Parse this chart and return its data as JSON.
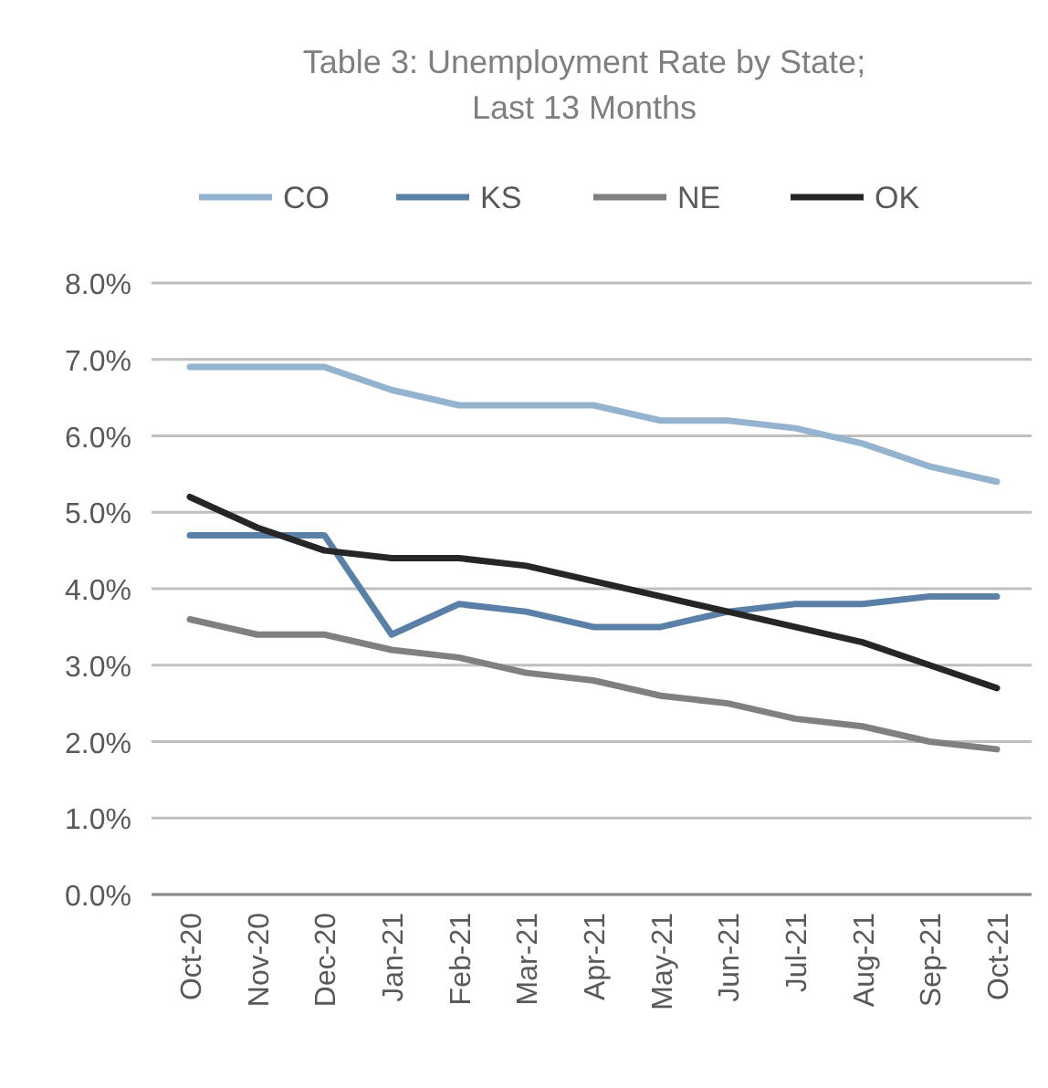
{
  "chart_data": {
    "type": "line",
    "title": "Table 3: Unemployment Rate by State; Last 13 Months",
    "categories": [
      "Oct-20",
      "Nov-20",
      "Dec-20",
      "Jan-21",
      "Feb-21",
      "Mar-21",
      "Apr-21",
      "May-21",
      "Jun-21",
      "Jul-21",
      "Aug-21",
      "Sep-21",
      "Oct-21"
    ],
    "series": [
      {
        "name": "CO",
        "color": "#93b3cf",
        "values": [
          6.9,
          6.9,
          6.9,
          6.6,
          6.4,
          6.4,
          6.4,
          6.2,
          6.2,
          6.1,
          5.9,
          5.6,
          5.4
        ]
      },
      {
        "name": "KS",
        "color": "#5b80a8",
        "values": [
          4.7,
          4.7,
          4.7,
          3.4,
          3.8,
          3.7,
          3.5,
          3.5,
          3.7,
          3.8,
          3.8,
          3.9,
          3.9
        ]
      },
      {
        "name": "NE",
        "color": "#808080",
        "values": [
          3.6,
          3.4,
          3.4,
          3.2,
          3.1,
          2.9,
          2.8,
          2.6,
          2.5,
          2.3,
          2.2,
          2.0,
          1.9
        ]
      },
      {
        "name": "OK",
        "color": "#262626",
        "values": [
          5.2,
          4.8,
          4.5,
          4.4,
          4.4,
          4.3,
          4.1,
          3.9,
          3.7,
          3.5,
          3.3,
          3.0,
          2.7
        ]
      }
    ],
    "ylim": [
      0,
      8
    ],
    "yticks": [
      {
        "value": 0,
        "label": "0.0%"
      },
      {
        "value": 1,
        "label": "1.0%"
      },
      {
        "value": 2,
        "label": "2.0%"
      },
      {
        "value": 3,
        "label": "3.0%"
      },
      {
        "value": 4,
        "label": "4.0%"
      },
      {
        "value": 5,
        "label": "5.0%"
      },
      {
        "value": 6,
        "label": "6.0%"
      },
      {
        "value": 7,
        "label": "7.0%"
      },
      {
        "value": 8,
        "label": "8.0%"
      }
    ],
    "grid": "y",
    "legend": "top",
    "marker": "none",
    "line_style": "solid"
  }
}
